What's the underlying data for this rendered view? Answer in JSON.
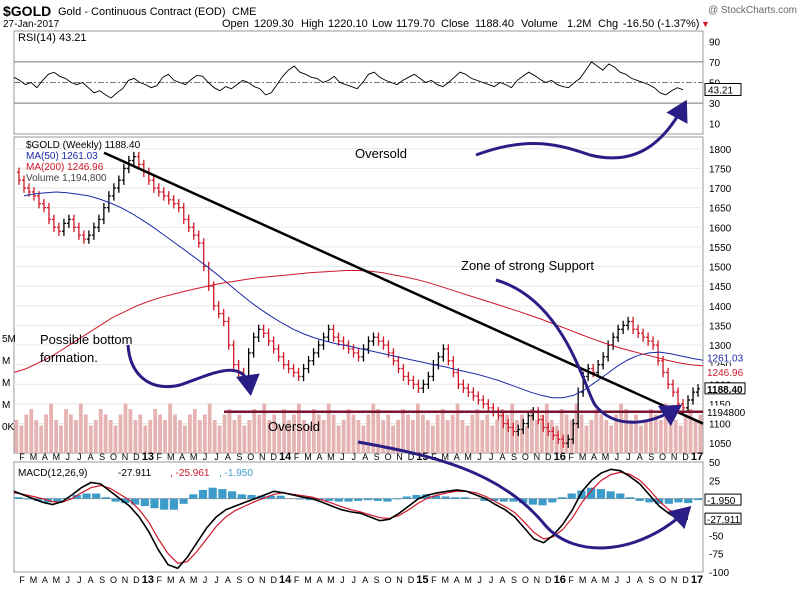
{
  "header": {
    "symbol": "$GOLD",
    "name": "Gold - Continuous Contract (EOD)",
    "exchange": "CME",
    "watermark": "@ StockCharts.com",
    "date": "27-Jan-2017",
    "open_label": "Open",
    "open": "1209.30",
    "high_label": "High",
    "high": "1220.10",
    "low_label": "Low",
    "low": "1179.70",
    "close_label": "Close",
    "close": "1188.40",
    "volume_label": "Volume",
    "volume": "1.2M",
    "chg_label": "Chg",
    "chg": "-16.50 (-1.37%)",
    "chg_arrow": "▼"
  },
  "annotations": {
    "oversold_top": "Oversold",
    "oversold_bottom": "Oversold",
    "zone": "Zone of strong Support",
    "bottom_line1": "Possible bottom",
    "bottom_line2": "formation."
  },
  "colors": {
    "ma50": "#1c2aa8",
    "ma200": "#d0182a",
    "price_up": "#000000",
    "price_down": "#d0182a",
    "volume": "#e6b3b3",
    "arrow": "#2a1e86",
    "support": "#7a1232",
    "macd_hist": "#3c9bc9",
    "rsi_fill": "#c98a8a"
  },
  "x_labels": [
    "F",
    "M",
    "A",
    "M",
    "J",
    "J",
    "A",
    "S",
    "O",
    "N",
    "D",
    "13",
    "F",
    "M",
    "A",
    "M",
    "J",
    "J",
    "A",
    "S",
    "O",
    "N",
    "D",
    "14",
    "F",
    "M",
    "A",
    "M",
    "J",
    "J",
    "A",
    "S",
    "O",
    "N",
    "D",
    "15",
    "F",
    "M",
    "A",
    "M",
    "J",
    "J",
    "A",
    "S",
    "O",
    "N",
    "D",
    "16",
    "F",
    "M",
    "A",
    "M",
    "J",
    "J",
    "A",
    "S",
    "O",
    "N",
    "D",
    "17"
  ],
  "chart_data": [
    {
      "type": "line",
      "title": "RSI(14) 43.21",
      "legend": [
        {
          "label": "RSI(14) 43.21"
        }
      ],
      "ylim": [
        0,
        100
      ],
      "y_ticks": [
        "90",
        "70",
        "50",
        "30",
        "10"
      ],
      "last_label": "43.21",
      "reference_lines": [
        70,
        50,
        30
      ],
      "values": [
        55,
        52,
        48,
        50,
        45,
        52,
        58,
        60,
        56,
        54,
        50,
        48,
        50,
        45,
        40,
        42,
        38,
        35,
        40,
        44,
        52,
        54,
        50,
        48,
        45,
        47,
        55,
        58,
        52,
        50,
        48,
        53,
        57,
        56,
        50,
        45,
        42,
        46,
        44,
        48,
        52,
        50,
        46,
        44,
        38,
        40,
        48,
        56,
        62,
        66,
        60,
        58,
        55,
        54,
        50,
        52,
        56,
        50,
        48,
        46,
        44,
        50,
        58,
        60,
        55,
        52,
        50,
        48,
        52,
        55,
        58,
        54,
        50,
        52,
        48,
        46,
        50,
        55,
        60,
        58,
        54,
        52,
        50,
        48,
        46,
        50,
        48,
        45,
        52,
        56,
        60,
        57,
        53,
        50,
        52,
        48,
        46,
        45,
        50,
        54,
        62,
        70,
        66,
        62,
        68,
        65,
        60,
        58,
        54,
        52,
        50,
        48,
        45,
        40,
        38,
        42,
        45,
        43
      ]
    },
    {
      "type": "line",
      "title": "$GOLD (Weekly) 1188.40",
      "legend": [
        {
          "label": "$GOLD (Weekly) 1188.40"
        },
        {
          "label": "MA(50) 1261.03"
        },
        {
          "label": "MA(200) 1246.96"
        },
        {
          "label": "Volume 1,194,800"
        }
      ],
      "ylim": [
        1025,
        1830
      ],
      "y_ticks": [
        "1800",
        "1750",
        "1700",
        "1650",
        "1600",
        "1550",
        "1500",
        "1450",
        "1400",
        "1350",
        "1300",
        "1250",
        "1200",
        "1150",
        "1100",
        "1050"
      ],
      "right_labels": [
        "1261.03",
        "1246.96",
        "1188.40",
        "1194800"
      ],
      "volume_axis_labels": [
        "5M",
        "M",
        "M",
        "M",
        "0K"
      ],
      "series": [
        {
          "name": "Price",
          "values": [
            1740,
            1720,
            1700,
            1690,
            1680,
            1660,
            1650,
            1620,
            1600,
            1590,
            1610,
            1620,
            1600,
            1580,
            1570,
            1580,
            1600,
            1620,
            1650,
            1680,
            1700,
            1720,
            1750,
            1770,
            1780,
            1760,
            1740,
            1720,
            1700,
            1690,
            1680,
            1670,
            1660,
            1650,
            1620,
            1600,
            1580,
            1560,
            1500,
            1450,
            1400,
            1380,
            1360,
            1300,
            1250,
            1230,
            1220,
            1280,
            1320,
            1340,
            1330,
            1310,
            1290,
            1270,
            1250,
            1240,
            1230,
            1220,
            1240,
            1260,
            1280,
            1300,
            1320,
            1340,
            1320,
            1310,
            1300,
            1290,
            1280,
            1270,
            1290,
            1310,
            1320,
            1310,
            1300,
            1280,
            1260,
            1240,
            1220,
            1210,
            1200,
            1190,
            1200,
            1220,
            1250,
            1270,
            1290,
            1260,
            1230,
            1200,
            1190,
            1180,
            1170,
            1160,
            1150,
            1140,
            1130,
            1120,
            1100,
            1090,
            1080,
            1085,
            1100,
            1120,
            1130,
            1110,
            1090,
            1080,
            1070,
            1060,
            1050,
            1060,
            1100,
            1180,
            1220,
            1240,
            1230,
            1250,
            1270,
            1300,
            1320,
            1340,
            1350,
            1360,
            1340,
            1330,
            1320,
            1310,
            1300,
            1260,
            1230,
            1200,
            1180,
            1150,
            1140,
            1160,
            1180,
            1188.4
          ]
        },
        {
          "name": "MA(50)",
          "values": [
            1680,
            1685,
            1688,
            1690,
            1688,
            1684,
            1680,
            1672,
            1662,
            1650,
            1635,
            1618,
            1600,
            1580,
            1560,
            1540,
            1520,
            1500,
            1478,
            1455,
            1432,
            1410,
            1390,
            1372,
            1355,
            1340,
            1328,
            1318,
            1310,
            1303,
            1298,
            1292,
            1286,
            1280,
            1274,
            1268,
            1262,
            1256,
            1250,
            1245,
            1238,
            1232,
            1226,
            1218,
            1210,
            1200,
            1190,
            1180,
            1172,
            1166,
            1166,
            1172,
            1186,
            1205,
            1225,
            1245,
            1262,
            1274,
            1280,
            1282,
            1278,
            1272,
            1266,
            1261.03
          ]
        },
        {
          "name": "MA(200)",
          "values": [
            1230,
            1240,
            1255,
            1270,
            1290,
            1310,
            1330,
            1350,
            1370,
            1385,
            1400,
            1412,
            1422,
            1430,
            1438,
            1445,
            1452,
            1458,
            1463,
            1468,
            1472,
            1475,
            1478,
            1481,
            1484,
            1486,
            1488,
            1490,
            1490,
            1488,
            1484,
            1478,
            1472,
            1465,
            1456,
            1446,
            1436,
            1426,
            1416,
            1406,
            1396,
            1386,
            1375,
            1364,
            1352,
            1340,
            1328,
            1316,
            1305,
            1295,
            1286,
            1278,
            1270,
            1262,
            1255,
            1250,
            1246.96
          ]
        },
        {
          "name": "Volume",
          "values": [
            0.6,
            0.5,
            0.7,
            0.8,
            0.6,
            0.5,
            0.7,
            0.9,
            0.6,
            0.5,
            0.8,
            0.7,
            0.6,
            0.9,
            0.7,
            0.5,
            0.6,
            0.8,
            0.7,
            0.6,
            0.5,
            0.7,
            0.9,
            0.8,
            0.6,
            0.7,
            0.5,
            0.6,
            0.8,
            0.7,
            0.6,
            0.9,
            0.7,
            0.6,
            0.5,
            0.7,
            0.8,
            0.6,
            0.7,
            0.9,
            0.6,
            0.5,
            0.7,
            0.8,
            0.6,
            0.7,
            0.5,
            0.6,
            0.8,
            0.7,
            0.9,
            0.6,
            0.7,
            0.5,
            0.8,
            0.6,
            0.7,
            0.9,
            0.6,
            0.5,
            0.8,
            0.7,
            0.6,
            0.9,
            0.7,
            0.5,
            0.6,
            0.8,
            0.7,
            0.6,
            0.5,
            0.7,
            0.9,
            0.8,
            0.6,
            0.7,
            0.5,
            0.6,
            0.8,
            0.7,
            0.6,
            0.9,
            0.7,
            0.6,
            0.5,
            0.7,
            0.8,
            0.6,
            0.7,
            0.9,
            0.6,
            0.5,
            0.7,
            0.8,
            0.6,
            0.7,
            0.5,
            0.6,
            0.8,
            0.7,
            0.9,
            0.6,
            0.7,
            0.5,
            0.8,
            0.6,
            0.7,
            0.9,
            0.6,
            0.5,
            0.8,
            0.7,
            0.6,
            0.9,
            0.7,
            0.5,
            0.6,
            0.8,
            0.7,
            0.6,
            0.5,
            0.7,
            0.9,
            0.8,
            0.6,
            0.7,
            0.5,
            0.6,
            0.8,
            0.7,
            0.6,
            0.9,
            0.7,
            0.6,
            0.5,
            0.7,
            0.8,
            0.6,
            0.7
          ]
        }
      ],
      "trendlines": [
        {
          "name": "resistance",
          "from": [
            0,
            1790
          ],
          "to": [
            1,
            1100
          ]
        },
        {
          "name": "support",
          "from": [
            0.3,
            1130
          ],
          "to": [
            1,
            1130
          ]
        }
      ]
    },
    {
      "type": "line",
      "title": "MACD(12,26,9) -27.911, -25.961, -1.950",
      "legend": [
        {
          "label": "MACD(12,26,9)"
        },
        {
          "label": "-27.911"
        },
        {
          "label": ", -25.961"
        },
        {
          "label": ", -1.950"
        }
      ],
      "ylim": [
        -100,
        50
      ],
      "y_ticks": [
        "50",
        "25",
        "0",
        "-25",
        "-50",
        "-75",
        "-100"
      ],
      "right_labels": [
        "-1.950",
        "-27.911"
      ],
      "series": [
        {
          "name": "MACD",
          "values": [
            10,
            5,
            0,
            -5,
            -8,
            -4,
            5,
            15,
            22,
            20,
            10,
            0,
            -10,
            -25,
            -45,
            -70,
            -90,
            -95,
            -80,
            -60,
            -40,
            -25,
            -15,
            -10,
            -5,
            0,
            5,
            10,
            8,
            5,
            2,
            0,
            -5,
            -10,
            -15,
            -18,
            -20,
            -25,
            -30,
            -28,
            -20,
            -10,
            0,
            5,
            8,
            10,
            12,
            10,
            5,
            0,
            -8,
            -15,
            -25,
            -40,
            -55,
            -60,
            -50,
            -35,
            -15,
            10,
            25,
            35,
            40,
            38,
            30,
            20,
            5,
            -10,
            -20,
            -28,
            -27.911
          ]
        },
        {
          "name": "Signal",
          "values": [
            8,
            6,
            3,
            0,
            -4,
            -5,
            0,
            8,
            15,
            18,
            14,
            6,
            -2,
            -15,
            -32,
            -55,
            -75,
            -88,
            -86,
            -72,
            -55,
            -38,
            -25,
            -16,
            -10,
            -4,
            1,
            6,
            8,
            6,
            4,
            2,
            -2,
            -6,
            -11,
            -15,
            -18,
            -22,
            -26,
            -27,
            -23,
            -15,
            -6,
            1,
            5,
            8,
            10,
            10,
            8,
            3,
            -4,
            -11,
            -19,
            -32,
            -46,
            -55,
            -52,
            -42,
            -26,
            -5,
            12,
            25,
            33,
            36,
            33,
            25,
            12,
            -3,
            -15,
            -22,
            -25.961
          ]
        },
        {
          "name": "Histogram",
          "values": [
            2,
            -1,
            -3,
            -5,
            -4,
            1,
            5,
            7,
            7,
            2,
            -4,
            -6,
            -8,
            -10,
            -13,
            -15,
            -15,
            -7,
            6,
            12,
            15,
            13,
            10,
            6,
            5,
            4,
            4,
            4,
            0,
            -1,
            -2,
            -2,
            -3,
            -4,
            -4,
            -3,
            -2,
            -3,
            -4,
            -1,
            3,
            5,
            6,
            4,
            3,
            2,
            2,
            0,
            -3,
            -3,
            -4,
            -4,
            -6,
            -8,
            -9,
            -5,
            2,
            7,
            11,
            15,
            13,
            10,
            7,
            2,
            -3,
            -5,
            -7,
            -7,
            -5,
            -6,
            -1.95
          ]
        }
      ]
    }
  ]
}
